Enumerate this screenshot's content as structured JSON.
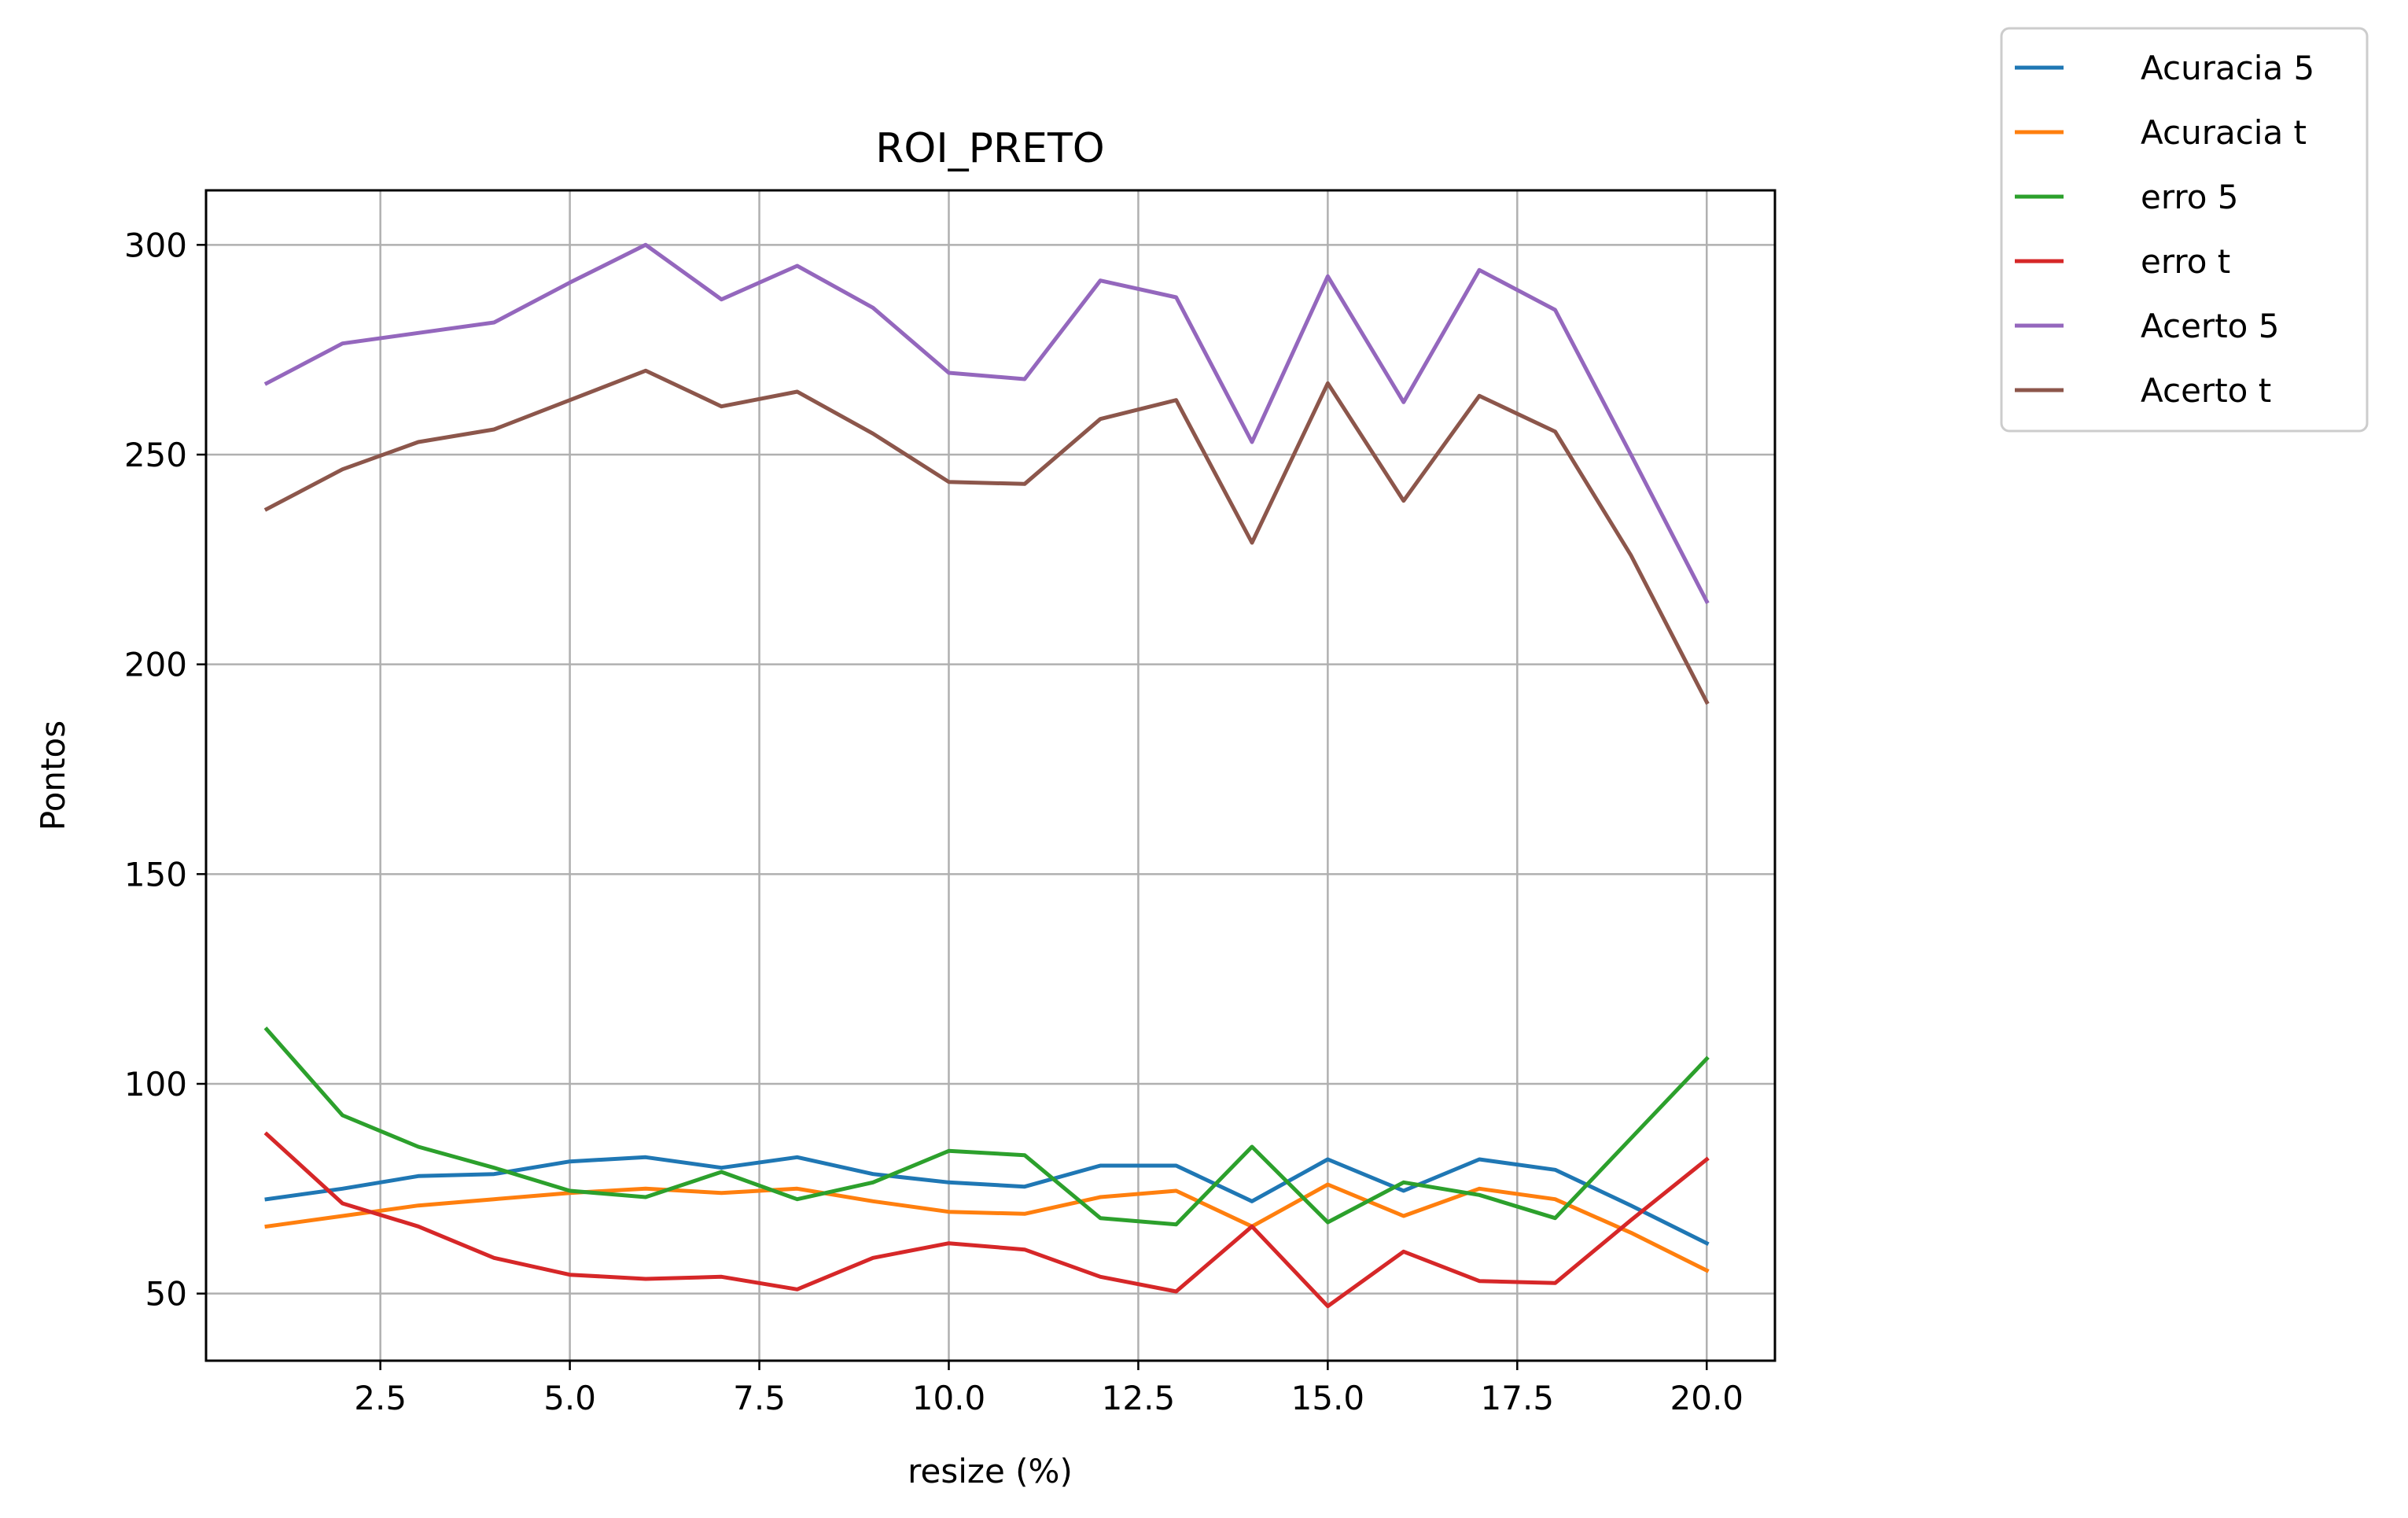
{
  "chart_data": {
    "type": "line",
    "title": "ROI_PRETO",
    "xlabel": "resize (%)",
    "ylabel": "Pontos",
    "xlim": [
      0.2,
      20.9
    ],
    "ylim": [
      34,
      313
    ],
    "xticks": [
      2.5,
      5.0,
      7.5,
      10.0,
      12.5,
      15.0,
      17.5,
      20.0
    ],
    "xtick_labels": [
      "2.5",
      "5.0",
      "7.5",
      "10.0",
      "12.5",
      "15.0",
      "17.5",
      "20.0"
    ],
    "yticks": [
      50,
      100,
      150,
      200,
      250,
      300
    ],
    "ytick_labels": [
      "50",
      "100",
      "150",
      "200",
      "250",
      "300"
    ],
    "grid": true,
    "legend_position": "outside-top-right",
    "x": [
      1,
      2,
      3,
      4,
      5,
      6,
      7,
      8,
      9,
      10,
      11,
      12,
      13,
      14,
      15,
      16,
      17,
      18,
      19,
      20
    ],
    "series": [
      {
        "name": "Acuracia 5",
        "color": "#1f77b4",
        "values": [
          72.5,
          75,
          78,
          78.5,
          81.5,
          82.5,
          80,
          82.5,
          78.5,
          76.5,
          75.5,
          80.5,
          80.5,
          72,
          82,
          74.5,
          82,
          79.5,
          71,
          62
        ]
      },
      {
        "name": "Acuracia t",
        "color": "#ff7f0e",
        "values": [
          66,
          68.5,
          71,
          72.5,
          74,
          75,
          74,
          75,
          72,
          69.5,
          69,
          73,
          74.5,
          66,
          76,
          68.5,
          75,
          72.5,
          64.5,
          55.5
        ]
      },
      {
        "name": "erro 5",
        "color": "#2ca02c",
        "values": [
          113,
          92.5,
          85,
          80,
          74.5,
          73,
          79,
          72.5,
          76.5,
          84,
          83,
          68,
          66.5,
          85,
          67,
          76.5,
          73.5,
          68,
          87,
          106
        ]
      },
      {
        "name": "erro t",
        "color": "#d62728",
        "values": [
          88,
          71.5,
          66,
          58.5,
          54.5,
          53.5,
          54,
          51,
          58.5,
          62,
          60.5,
          54,
          50.5,
          66,
          47,
          60,
          53,
          52.5,
          67.5,
          82
        ]
      },
      {
        "name": "Acerto 5",
        "color": "#9467bd",
        "values": [
          267,
          276.5,
          279,
          281.5,
          291,
          300,
          287,
          295,
          285,
          269.5,
          268,
          291.5,
          287.5,
          253,
          292.5,
          262.5,
          294,
          284.5,
          250,
          215
        ]
      },
      {
        "name": "Acerto t",
        "color": "#8c564b",
        "values": [
          237,
          246.5,
          253,
          256,
          263,
          270,
          261.5,
          265,
          255,
          243.5,
          243,
          258.5,
          263,
          229,
          267,
          239,
          264,
          255.5,
          226,
          191
        ]
      }
    ]
  }
}
